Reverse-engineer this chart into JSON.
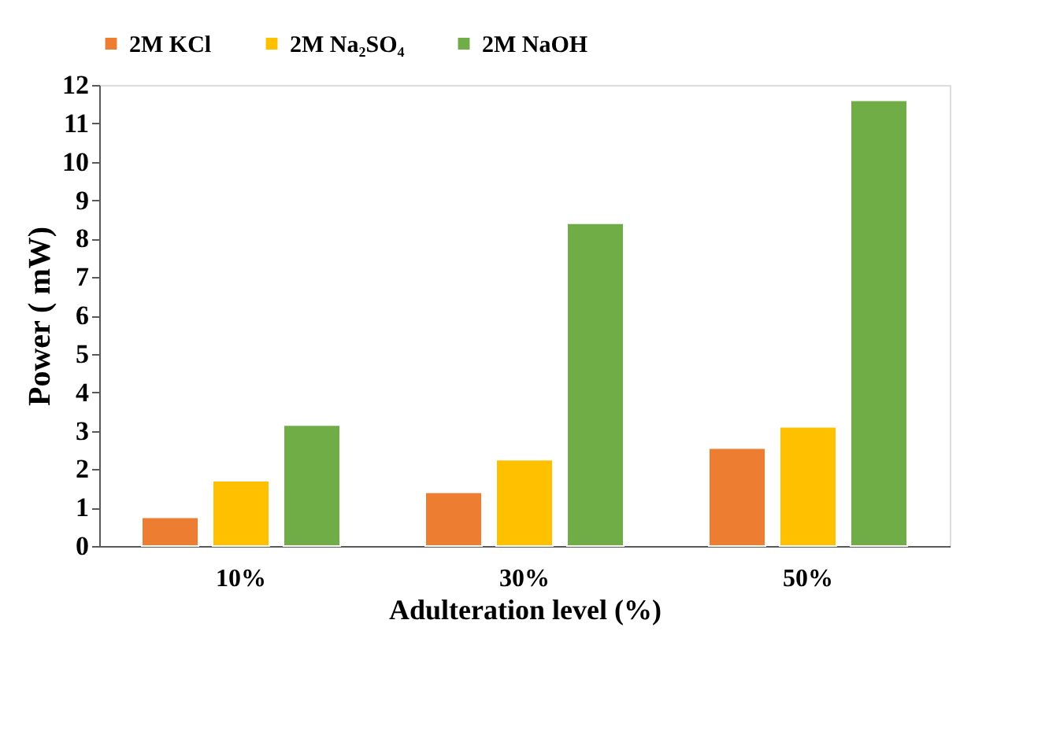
{
  "chart_data": {
    "type": "bar",
    "xlabel": "Adulteration level (%)",
    "ylabel": "Power ( mW)",
    "categories": [
      "10%",
      "30%",
      "50%"
    ],
    "series": [
      {
        "name": "2M KCl",
        "color": "#ed7d31",
        "values": [
          0.75,
          1.4,
          2.55
        ]
      },
      {
        "name": "2M Na₂SO₄",
        "color": "#ffc000",
        "values": [
          1.7,
          2.25,
          3.1
        ]
      },
      {
        "name": "2M NaOH",
        "color": "#70ad47",
        "values": [
          3.15,
          8.4,
          11.6
        ]
      }
    ],
    "ylim": [
      0,
      12
    ],
    "yticks": [
      0,
      1,
      2,
      3,
      4,
      5,
      6,
      7,
      8,
      9,
      10,
      11,
      12
    ],
    "grid": false,
    "legend": "top"
  }
}
